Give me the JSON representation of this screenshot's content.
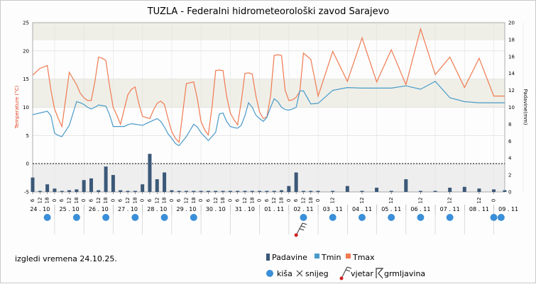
{
  "chart_data": {
    "type": "line",
    "title": "TUZLA - Federalni hidrometeorološki zavod Sarajevo",
    "ylabel_left": "Temperature (°C)",
    "ylabel_right": "Padavine(mm)",
    "ylim_left": [
      -5,
      25
    ],
    "ylim_right": [
      0,
      20
    ],
    "y_ticks_left": [
      "-5",
      "0",
      "5",
      "10",
      "15",
      "20",
      "25"
    ],
    "y_ticks_right": [
      "0",
      "2",
      "4",
      "6",
      "8",
      "10",
      "12",
      "14",
      "16",
      "18",
      "20"
    ],
    "grid": true,
    "legend_position": "bottom",
    "x_unit": "hours since 24.10. 06:00",
    "x_range": [
      0,
      387
    ],
    "day_labels": [
      "24 . 10",
      "25 . 10",
      "26 . 10",
      "27 . 10",
      "28 . 10",
      "29 . 10",
      "30 . 10",
      "31 . 10",
      "01 . 11",
      "02 . 11",
      "03 . 11",
      "04 . 11",
      "05 . 11",
      "06 . 11",
      "07 . 11",
      "08 . 11",
      "09 . 11"
    ],
    "hour_ticks": [
      {
        "h": 0,
        "t": "6"
      },
      {
        "h": 6,
        "t": "12"
      },
      {
        "h": 12,
        "t": "18"
      },
      {
        "h": 18,
        "t": "0"
      },
      {
        "h": 24,
        "t": "6"
      },
      {
        "h": 30,
        "t": "12"
      },
      {
        "h": 36,
        "t": "18"
      },
      {
        "h": 42,
        "t": "0"
      },
      {
        "h": 48,
        "t": "6"
      },
      {
        "h": 54,
        "t": "12"
      },
      {
        "h": 60,
        "t": "18"
      },
      {
        "h": 66,
        "t": "0"
      },
      {
        "h": 72,
        "t": "6"
      },
      {
        "h": 78,
        "t": "12"
      },
      {
        "h": 84,
        "t": "18"
      },
      {
        "h": 90,
        "t": "0"
      },
      {
        "h": 96,
        "t": "6"
      },
      {
        "h": 102,
        "t": "12"
      },
      {
        "h": 108,
        "t": "18"
      },
      {
        "h": 114,
        "t": "0"
      },
      {
        "h": 120,
        "t": "6"
      },
      {
        "h": 126,
        "t": "12"
      },
      {
        "h": 132,
        "t": "18"
      },
      {
        "h": 138,
        "t": "0"
      },
      {
        "h": 144,
        "t": "6"
      },
      {
        "h": 150,
        "t": "12"
      },
      {
        "h": 156,
        "t": "18"
      },
      {
        "h": 162,
        "t": "0"
      },
      {
        "h": 168,
        "t": "6"
      },
      {
        "h": 174,
        "t": "12"
      },
      {
        "h": 180,
        "t": "18"
      },
      {
        "h": 186,
        "t": "0"
      },
      {
        "h": 192,
        "t": "6"
      },
      {
        "h": 198,
        "t": "12"
      },
      {
        "h": 204,
        "t": "18"
      },
      {
        "h": 210,
        "t": "0"
      },
      {
        "h": 216,
        "t": "6"
      },
      {
        "h": 222,
        "t": "12"
      },
      {
        "h": 228,
        "t": "18"
      },
      {
        "h": 234,
        "t": "0"
      },
      {
        "h": 246,
        "t": "12"
      },
      {
        "h": 270,
        "t": "12"
      },
      {
        "h": 294,
        "t": "12"
      },
      {
        "h": 318,
        "t": "12"
      },
      {
        "h": 342,
        "t": "12"
      },
      {
        "h": 366,
        "t": "12"
      },
      {
        "h": 378,
        "t": "0"
      }
    ],
    "series": [
      {
        "name": "Tmax",
        "color": "#f07a50",
        "axis": "left",
        "x": [
          0,
          6,
          12,
          15,
          18,
          21,
          24,
          30,
          36,
          39,
          42,
          45,
          48,
          51,
          54,
          57,
          60,
          63,
          66,
          69,
          72,
          75,
          78,
          81,
          84,
          87,
          90,
          93,
          96,
          99,
          102,
          105,
          108,
          111,
          114,
          117,
          120,
          126,
          132,
          135,
          138,
          141,
          144,
          147,
          150,
          153,
          156,
          159,
          162,
          165,
          168,
          171,
          174,
          177,
          180,
          183,
          186,
          189,
          192,
          195,
          198,
          201,
          204,
          207,
          210,
          213,
          216,
          219,
          222,
          228,
          234,
          246,
          258,
          270,
          282,
          294,
          306,
          318,
          330,
          342,
          354,
          366,
          378,
          387
        ],
        "y": [
          15.7,
          16.9,
          17.4,
          13.0,
          9.7,
          8.0,
          6.6,
          16.2,
          14.0,
          12.5,
          11.7,
          11.2,
          11.2,
          14.5,
          18.9,
          18.7,
          18.3,
          13.8,
          10.0,
          8.6,
          7.0,
          9.6,
          12.2,
          13.2,
          13.6,
          10.7,
          8.4,
          8.2,
          8.0,
          9.5,
          10.7,
          11.1,
          10.5,
          8.0,
          5.7,
          4.5,
          3.8,
          14.2,
          14.5,
          11.5,
          7.5,
          6.0,
          5.1,
          10.0,
          16.5,
          16.6,
          16.5,
          12.0,
          9.0,
          7.8,
          6.9,
          11.0,
          16.0,
          16.1,
          15.9,
          12.0,
          9.2,
          8.0,
          8.3,
          12.0,
          19.2,
          19.3,
          19.2,
          13.0,
          11.2,
          11.3,
          11.8,
          12.8,
          19.6,
          18.5,
          12.0,
          19.9,
          14.6,
          22.3,
          14.5,
          20.2,
          14.0,
          23.9,
          15.8,
          18.9,
          13.5,
          18.7,
          12.0,
          12.0
        ]
      },
      {
        "name": "Tmin",
        "color": "#4a9ac8",
        "axis": "left",
        "x": [
          0,
          6,
          12,
          15,
          18,
          21,
          24,
          30,
          36,
          39,
          42,
          45,
          48,
          51,
          54,
          57,
          60,
          63,
          66,
          69,
          72,
          75,
          78,
          81,
          84,
          87,
          90,
          93,
          96,
          99,
          102,
          105,
          108,
          111,
          114,
          117,
          120,
          126,
          132,
          135,
          138,
          141,
          144,
          147,
          150,
          153,
          156,
          159,
          162,
          165,
          168,
          171,
          174,
          177,
          180,
          183,
          186,
          189,
          192,
          195,
          198,
          201,
          204,
          207,
          210,
          213,
          216,
          219,
          222,
          228,
          234,
          246,
          258,
          270,
          282,
          294,
          306,
          318,
          330,
          342,
          354,
          366,
          378,
          387
        ],
        "y": [
          8.7,
          9.0,
          9.3,
          8.5,
          5.4,
          5.0,
          4.8,
          6.8,
          11.0,
          10.8,
          10.5,
          10.0,
          9.7,
          10.0,
          10.4,
          10.3,
          10.2,
          8.7,
          6.6,
          6.6,
          6.6,
          6.6,
          6.9,
          7.1,
          7.0,
          6.9,
          6.8,
          7.1,
          7.4,
          7.7,
          8.0,
          7.5,
          6.5,
          5.3,
          4.5,
          3.6,
          3.2,
          4.8,
          7.0,
          6.5,
          5.5,
          4.8,
          4.1,
          4.8,
          5.6,
          8.8,
          9.0,
          7.5,
          6.6,
          6.4,
          6.3,
          6.8,
          8.5,
          10.8,
          10.0,
          8.6,
          8.0,
          7.5,
          8.2,
          10.0,
          11.5,
          11.0,
          10.0,
          9.6,
          9.5,
          9.7,
          10.0,
          12.9,
          12.9,
          10.6,
          10.7,
          13.0,
          13.5,
          13.4,
          13.4,
          13.4,
          13.8,
          13.2,
          14.6,
          11.7,
          11.0,
          10.8,
          10.8,
          10.8
        ]
      }
    ],
    "precipitation": {
      "name": "Padavine",
      "color": "#3b5878",
      "axis": "right",
      "x": [
        0,
        6,
        12,
        18,
        24,
        30,
        36,
        42,
        48,
        54,
        60,
        66,
        72,
        78,
        84,
        90,
        96,
        102,
        108,
        114,
        120,
        126,
        132,
        138,
        144,
        150,
        156,
        162,
        168,
        174,
        180,
        186,
        192,
        198,
        204,
        210,
        216,
        222,
        228,
        234,
        246,
        258,
        270,
        282,
        294,
        306,
        318,
        330,
        342,
        354,
        366,
        378,
        387
      ],
      "y": [
        1.7,
        0.1,
        0.9,
        0.4,
        0,
        0.2,
        0.3,
        1.4,
        1.6,
        0.2,
        3.0,
        2.0,
        0.2,
        0.1,
        0,
        0.9,
        4.5,
        1.5,
        2.3,
        0.2,
        0,
        0,
        0,
        0,
        0,
        0,
        0,
        0,
        0,
        0,
        0,
        0,
        0,
        0,
        0.2,
        0.7,
        2.3,
        0,
        0,
        0,
        0,
        0.7,
        0,
        0.5,
        0,
        1.5,
        0,
        0,
        0.5,
        0.6,
        0.4,
        0.3,
        0.2
      ]
    },
    "rain_markers_hours": [
      12,
      36,
      60,
      84,
      108,
      132,
      222,
      246,
      270,
      294,
      318,
      342,
      378,
      384
    ],
    "wind_markers_hours": [
      216
    ],
    "legend": {
      "padavine": "Padavine",
      "tmin": "Tmin",
      "tmax": "Tmax",
      "kisa": "kiša",
      "snijeg": "snijeg",
      "vjetar": "vjetar",
      "grmljavina": "grmljavina"
    },
    "issued_text": "izgledi vremena 24.10.25.",
    "colors": {
      "tmax": "#f07a50",
      "tmin": "#4a9ac8",
      "bars": "#3b5878",
      "rain": "#3a8fd8"
    }
  }
}
